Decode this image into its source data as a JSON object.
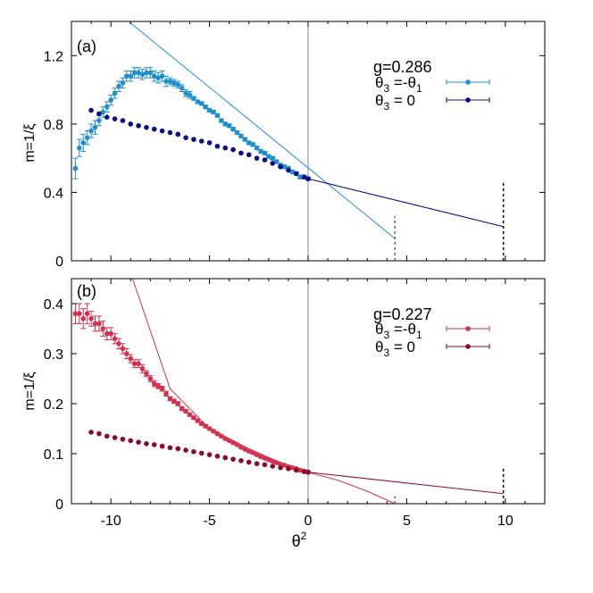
{
  "colors": {
    "light_blue": "#1f8fcf",
    "dark_blue": "#0c0c86",
    "light_red": "#d4314f",
    "dark_red": "#8b0a2a",
    "axis": "#000000",
    "zero_line": "#888888"
  },
  "chart_data": [
    {
      "type": "scatter",
      "panel_label": "(a)",
      "legend_title": "g=0.286",
      "legend_placement": "top-right",
      "xlabel": "θ",
      "xlabel_sup": "2",
      "ylabel": "m=1/ξ",
      "xlim": [
        -12,
        12
      ],
      "ylim": [
        0,
        1.4
      ],
      "xticks": [
        -10,
        -5,
        0,
        5,
        10
      ],
      "xtick_labels": [
        "-10",
        "-5",
        "0",
        "5",
        "10"
      ],
      "yticks": [
        0,
        0.4,
        0.8,
        1.2
      ],
      "ytick_labels": [
        "0",
        "0.4",
        "0.8",
        "1.2"
      ],
      "grid": false,
      "zero_vline": 0,
      "series": [
        {
          "name": "θ3 = -θ1",
          "legend_main": "θ",
          "legend_sub": "3",
          "legend_rest": " =-θ",
          "legend_sub2": "1",
          "color": "#1f8fcf",
          "x": [
            -11.8,
            -11.6,
            -11.4,
            -11.2,
            -11.0,
            -10.8,
            -10.6,
            -10.4,
            -10.2,
            -10.0,
            -9.8,
            -9.6,
            -9.4,
            -9.2,
            -9.0,
            -8.8,
            -8.6,
            -8.4,
            -8.2,
            -8.0,
            -7.8,
            -7.6,
            -7.4,
            -7.2,
            -7.0,
            -6.8,
            -6.6,
            -6.4,
            -6.2,
            -6.0,
            -5.8,
            -5.6,
            -5.4,
            -5.2,
            -5.0,
            -4.8,
            -4.6,
            -4.4,
            -4.2,
            -4.0,
            -3.8,
            -3.6,
            -3.4,
            -3.2,
            -3.0,
            -2.8,
            -2.6,
            -2.4,
            -2.2,
            -2.0,
            -1.8,
            -1.6,
            -1.4,
            -1.2,
            -1.0,
            -0.8,
            -0.6,
            -0.4,
            -0.2,
            0.0
          ],
          "y": [
            0.54,
            0.66,
            0.69,
            0.72,
            0.76,
            0.78,
            0.82,
            0.87,
            0.9,
            0.94,
            0.98,
            1.02,
            1.04,
            1.08,
            1.08,
            1.1,
            1.1,
            1.09,
            1.1,
            1.1,
            1.08,
            1.07,
            1.08,
            1.05,
            1.05,
            1.04,
            1.03,
            1.01,
            0.98,
            0.97,
            0.95,
            0.93,
            0.92,
            0.9,
            0.88,
            0.87,
            0.85,
            0.82,
            0.8,
            0.79,
            0.77,
            0.75,
            0.73,
            0.71,
            0.69,
            0.68,
            0.66,
            0.64,
            0.63,
            0.61,
            0.6,
            0.58,
            0.56,
            0.55,
            0.54,
            0.52,
            0.51,
            0.49,
            0.49,
            0.48
          ],
          "yerr": [
            0.06,
            0.05,
            0.05,
            0.04,
            0.04,
            0.04,
            0.03,
            0.03,
            0.03,
            0.03,
            0.03,
            0.03,
            0.03,
            0.03,
            0.03,
            0.03,
            0.03,
            0.03,
            0.03,
            0.03,
            0.03,
            0.03,
            0.03,
            0.03,
            0.02,
            0.02,
            0.02,
            0.02,
            0.02,
            0.02,
            0.01,
            0.01,
            0.01,
            0.01,
            0.01,
            0.01,
            0.01,
            0.01,
            0.01,
            0.01,
            0.01,
            0.01,
            0.01,
            0.01,
            0.01,
            0.01,
            0.01,
            0.01,
            0.01,
            0.01,
            0.01,
            0.01,
            0.01,
            0.01,
            0.01,
            0.01,
            0.01,
            0.01,
            0.01,
            0.01
          ],
          "fit_line": {
            "x": [
              -9.1,
              4.4
            ],
            "y": [
              1.4,
              0.13
            ]
          },
          "dashed_marker_x": 4.4,
          "dashed_marker_ytop": 0.26
        },
        {
          "name": "θ3 = 0",
          "legend_main": "θ",
          "legend_sub": "3",
          "legend_rest": " = 0",
          "legend_sub2": "",
          "color": "#0c0c86",
          "x": [
            -11.0,
            -10.6,
            -10.2,
            -9.8,
            -9.4,
            -9.0,
            -8.6,
            -8.2,
            -7.8,
            -7.4,
            -7.0,
            -6.6,
            -6.2,
            -5.8,
            -5.4,
            -5.0,
            -4.6,
            -4.2,
            -3.8,
            -3.4,
            -3.0,
            -2.6,
            -2.2,
            -1.8,
            -1.4,
            -1.0,
            -0.6,
            -0.2,
            0.0
          ],
          "y": [
            0.88,
            0.86,
            0.84,
            0.83,
            0.82,
            0.8,
            0.79,
            0.78,
            0.77,
            0.76,
            0.75,
            0.74,
            0.72,
            0.71,
            0.7,
            0.69,
            0.67,
            0.66,
            0.65,
            0.63,
            0.62,
            0.6,
            0.59,
            0.57,
            0.55,
            0.53,
            0.51,
            0.49,
            0.48
          ],
          "yerr": [],
          "fit_line": {
            "x": [
              0.0,
              9.9
            ],
            "y": [
              0.48,
              0.2
            ]
          },
          "dashed_marker_x": 9.9,
          "dashed_marker_ytop": 0.46
        }
      ]
    },
    {
      "type": "scatter",
      "panel_label": "(b)",
      "legend_title": "g=0.227",
      "legend_placement": "top-right",
      "xlabel": "θ",
      "xlabel_sup": "2",
      "ylabel": "m=1/ξ",
      "xlim": [
        -12,
        12
      ],
      "ylim": [
        0,
        0.45
      ],
      "xticks": [
        -10,
        -5,
        0,
        5,
        10
      ],
      "xtick_labels": [
        "-10",
        "-5",
        "0",
        "5",
        "10"
      ],
      "yticks": [
        0,
        0.1,
        0.2,
        0.3,
        0.4
      ],
      "ytick_labels": [
        "0",
        "0.1",
        "0.2",
        "0.3",
        "0.4"
      ],
      "grid": false,
      "zero_vline": 0,
      "series": [
        {
          "name": "θ3 = -θ1",
          "legend_main": "θ",
          "legend_sub": "3",
          "legend_rest": " =-θ",
          "legend_sub2": "1",
          "color": "#d4314f",
          "x": [
            -11.8,
            -11.6,
            -11.4,
            -11.2,
            -11.0,
            -10.8,
            -10.6,
            -10.4,
            -10.2,
            -10.0,
            -9.8,
            -9.6,
            -9.4,
            -9.2,
            -9.0,
            -8.8,
            -8.6,
            -8.4,
            -8.2,
            -8.0,
            -7.8,
            -7.6,
            -7.4,
            -7.2,
            -7.0,
            -6.8,
            -6.6,
            -6.4,
            -6.2,
            -6.0,
            -5.8,
            -5.6,
            -5.4,
            -5.2,
            -5.0,
            -4.8,
            -4.6,
            -4.4,
            -4.2,
            -4.0,
            -3.8,
            -3.6,
            -3.4,
            -3.2,
            -3.0,
            -2.8,
            -2.6,
            -2.4,
            -2.2,
            -2.0,
            -1.8,
            -1.6,
            -1.4,
            -1.2,
            -1.0,
            -0.8,
            -0.6,
            -0.4,
            -0.2,
            0.0
          ],
          "y": [
            0.38,
            0.38,
            0.37,
            0.38,
            0.37,
            0.36,
            0.36,
            0.35,
            0.34,
            0.34,
            0.33,
            0.32,
            0.31,
            0.3,
            0.29,
            0.28,
            0.28,
            0.27,
            0.26,
            0.25,
            0.24,
            0.235,
            0.23,
            0.22,
            0.21,
            0.205,
            0.2,
            0.19,
            0.185,
            0.178,
            0.172,
            0.166,
            0.16,
            0.155,
            0.15,
            0.145,
            0.14,
            0.135,
            0.13,
            0.126,
            0.122,
            0.118,
            0.113,
            0.109,
            0.105,
            0.102,
            0.098,
            0.094,
            0.091,
            0.088,
            0.085,
            0.082,
            0.079,
            0.077,
            0.074,
            0.072,
            0.07,
            0.067,
            0.065,
            0.063
          ],
          "yerr": [
            0.02,
            0.02,
            0.02,
            0.02,
            0.015,
            0.015,
            0.015,
            0.015,
            0.012,
            0.012,
            0.01,
            0.01,
            0.01,
            0.01,
            0.008,
            0.008,
            0.008,
            0.008,
            0.006,
            0.006,
            0.006,
            0.005,
            0.005,
            0.005,
            0.004,
            0.004,
            0.004,
            0.004,
            0.003,
            0.003,
            0.003,
            0.003,
            0.003,
            0.003,
            0.002,
            0.002,
            0.002,
            0.002,
            0.002,
            0.002,
            0.002,
            0.002,
            0.002,
            0.002,
            0.002,
            0.002,
            0.002,
            0.002,
            0.002,
            0.002,
            0.002,
            0.002,
            0.002,
            0.002,
            0.002,
            0.002,
            0.002,
            0.002,
            0.002,
            0.002
          ],
          "fit_curve": {
            "x": [
              -8.9,
              -7.0,
              -5.0,
              -3.0,
              -1.0,
              0.0,
              1.5,
              3.0,
              4.4
            ],
            "y": [
              0.45,
              0.23,
              0.15,
              0.11,
              0.075,
              0.063,
              0.047,
              0.025,
              0.0
            ]
          },
          "dashed_marker_x": 4.4,
          "dashed_marker_ytop": 0.015
        },
        {
          "name": "θ3 = 0",
          "legend_main": "θ",
          "legend_sub": "3",
          "legend_rest": " = 0",
          "legend_sub2": "",
          "color": "#8b0a2a",
          "x": [
            -11.0,
            -10.6,
            -10.2,
            -9.8,
            -9.4,
            -9.0,
            -8.6,
            -8.2,
            -7.8,
            -7.4,
            -7.0,
            -6.6,
            -6.2,
            -5.8,
            -5.4,
            -5.0,
            -4.6,
            -4.2,
            -3.8,
            -3.4,
            -3.0,
            -2.6,
            -2.2,
            -1.8,
            -1.4,
            -1.0,
            -0.6,
            -0.2,
            0.0
          ],
          "y": [
            0.143,
            0.14,
            0.135,
            0.132,
            0.129,
            0.126,
            0.123,
            0.12,
            0.118,
            0.115,
            0.112,
            0.11,
            0.107,
            0.104,
            0.101,
            0.098,
            0.095,
            0.092,
            0.089,
            0.086,
            0.083,
            0.08,
            0.078,
            0.075,
            0.072,
            0.07,
            0.067,
            0.064,
            0.063
          ],
          "yerr": [],
          "fit_line": {
            "x": [
              0.0,
              9.9
            ],
            "y": [
              0.063,
              0.02
            ]
          },
          "dashed_marker_x": 9.9,
          "dashed_marker_ytop": 0.072
        }
      ]
    }
  ]
}
